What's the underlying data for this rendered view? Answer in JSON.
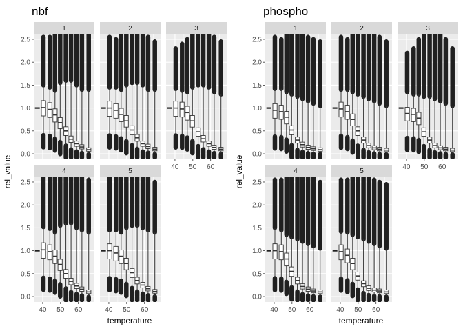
{
  "chart_data": [
    {
      "type": "boxplot",
      "title": "nbf",
      "xlabel": "temperature",
      "ylabel": "rel_value",
      "xlim": [
        35,
        69
      ],
      "ylim": [
        -0.12,
        2.62
      ],
      "x_ticks": [
        40,
        50,
        60
      ],
      "y_ticks": [
        "0.0",
        "0.5",
        "1.0",
        "1.5",
        "2.0",
        "2.5"
      ],
      "y_tick_values": [
        0,
        0.5,
        1,
        1.5,
        2,
        2.5
      ],
      "x_values": [
        37,
        40.4,
        44,
        46.9,
        49.8,
        53,
        55.9,
        59,
        62,
        65.8
      ],
      "panels": [
        {
          "label": "1",
          "medians": [
            1.0,
            1.01,
            0.97,
            0.85,
            0.68,
            0.5,
            0.32,
            0.22,
            0.15,
            0.09
          ],
          "whisker_top": [
            1.0,
            1.5,
            1.45,
            1.38,
            1.55,
            1.6,
            1.6,
            1.5,
            1.4,
            1.4
          ],
          "outlier_top": [
            1.0,
            2.55,
            2.55,
            2.6,
            2.6,
            2.6,
            2.6,
            2.6,
            2.6,
            2.6
          ]
        },
        {
          "label": "2",
          "medians": [
            1.0,
            1.0,
            0.95,
            0.86,
            0.72,
            0.52,
            0.35,
            0.22,
            0.16,
            0.1
          ],
          "whisker_top": [
            1.0,
            1.45,
            1.45,
            1.4,
            1.5,
            1.55,
            1.55,
            1.5,
            1.4,
            1.4
          ],
          "outlier_top": [
            1.0,
            2.55,
            2.5,
            2.6,
            2.6,
            2.6,
            2.6,
            2.6,
            2.55,
            2.45
          ]
        },
        {
          "label": "3",
          "medians": [
            1.0,
            1.0,
            0.98,
            0.9,
            0.72,
            0.48,
            0.33,
            0.22,
            0.14,
            0.1
          ],
          "whisker_top": [
            1.0,
            1.42,
            1.38,
            1.35,
            1.45,
            1.5,
            1.5,
            1.45,
            1.35,
            1.3
          ],
          "outlier_top": [
            1.0,
            2.3,
            2.4,
            2.5,
            2.6,
            2.6,
            2.6,
            2.6,
            2.55,
            2.45
          ]
        },
        {
          "label": "4",
          "medians": [
            1.0,
            1.02,
            0.98,
            0.88,
            0.7,
            0.5,
            0.33,
            0.23,
            0.16,
            0.1
          ],
          "whisker_top": [
            1.0,
            1.52,
            1.48,
            1.4,
            1.55,
            1.6,
            1.6,
            1.5,
            1.45,
            1.4
          ],
          "outlier_top": [
            1.0,
            2.6,
            2.6,
            2.6,
            2.6,
            2.6,
            2.6,
            2.6,
            2.6,
            2.55
          ]
        },
        {
          "label": "5",
          "medians": [
            1.0,
            1.0,
            0.95,
            0.88,
            0.72,
            0.52,
            0.35,
            0.25,
            0.17,
            0.11
          ],
          "whisker_top": [
            1.0,
            1.45,
            1.45,
            1.4,
            1.5,
            1.55,
            1.55,
            1.5,
            1.45,
            1.4
          ],
          "outlier_top": [
            1.0,
            2.6,
            2.6,
            2.6,
            2.6,
            2.6,
            2.6,
            2.6,
            2.6,
            2.5
          ]
        }
      ]
    },
    {
      "type": "boxplot",
      "title": "phospho",
      "xlabel": "temperature",
      "ylabel": "rel_value",
      "xlim": [
        35,
        69
      ],
      "ylim": [
        -0.12,
        2.62
      ],
      "x_ticks": [
        40,
        50,
        60
      ],
      "y_ticks": [
        "0.0",
        "0.5",
        "1.0",
        "1.5",
        "2.0",
        "2.5"
      ],
      "y_tick_values": [
        0,
        0.5,
        1,
        1.5,
        2,
        2.5
      ],
      "x_values": [
        37,
        40.4,
        44,
        46.9,
        49.8,
        53,
        55.9,
        59,
        62,
        65.8
      ],
      "panels": [
        {
          "label": "1",
          "medians": [
            1.0,
            0.95,
            0.92,
            0.8,
            0.52,
            0.3,
            0.2,
            0.14,
            0.11,
            0.09
          ],
          "whisker_top": [
            1.0,
            1.42,
            1.42,
            1.35,
            1.3,
            1.25,
            1.2,
            1.15,
            1.1,
            1.05
          ],
          "outlier_top": [
            1.0,
            2.55,
            2.5,
            2.6,
            2.6,
            2.6,
            2.6,
            2.55,
            2.5,
            2.45
          ]
        },
        {
          "label": "2",
          "medians": [
            1.0,
            0.98,
            0.92,
            0.75,
            0.5,
            0.3,
            0.18,
            0.13,
            0.1,
            0.08
          ],
          "whisker_top": [
            1.0,
            1.4,
            1.4,
            1.35,
            1.3,
            1.25,
            1.2,
            1.15,
            1.1,
            1.05
          ],
          "outlier_top": [
            1.0,
            2.55,
            2.5,
            2.6,
            2.6,
            2.6,
            2.6,
            2.6,
            2.55,
            2.45
          ]
        },
        {
          "label": "3",
          "medians": [
            1.0,
            0.88,
            0.86,
            0.78,
            0.48,
            0.3,
            0.18,
            0.13,
            0.1,
            0.08
          ],
          "whisker_top": [
            1.0,
            1.35,
            1.3,
            1.3,
            1.25,
            1.25,
            1.2,
            1.15,
            1.1,
            1.05
          ],
          "outlier_top": [
            1.0,
            2.2,
            2.3,
            2.5,
            2.6,
            2.6,
            2.6,
            2.6,
            2.5,
            2.3
          ]
        },
        {
          "label": "4",
          "medians": [
            1.0,
            1.0,
            0.98,
            0.82,
            0.55,
            0.35,
            0.22,
            0.16,
            0.12,
            0.1
          ],
          "whisker_top": [
            1.0,
            1.5,
            1.45,
            1.35,
            1.3,
            1.25,
            1.2,
            1.15,
            1.1,
            1.05
          ],
          "outlier_top": [
            1.0,
            2.55,
            2.55,
            2.6,
            2.6,
            2.6,
            2.6,
            2.6,
            2.6,
            2.5
          ]
        },
        {
          "label": "5",
          "medians": [
            1.0,
            0.98,
            0.9,
            0.72,
            0.45,
            0.28,
            0.18,
            0.14,
            0.12,
            0.1
          ],
          "whisker_top": [
            1.0,
            1.42,
            1.4,
            1.35,
            1.3,
            1.25,
            1.2,
            1.15,
            1.1,
            1.05
          ],
          "outlier_top": [
            1.0,
            2.55,
            2.55,
            2.6,
            2.6,
            2.6,
            2.6,
            2.55,
            2.5,
            2.45
          ]
        }
      ]
    }
  ],
  "style": {
    "panel_bg": "#ebebeb",
    "strip_bg": "#d9d9d9",
    "grid_major": "#ffffff",
    "ink": "#333333",
    "box_fill": "#ffffff",
    "outlier": "#202020"
  }
}
